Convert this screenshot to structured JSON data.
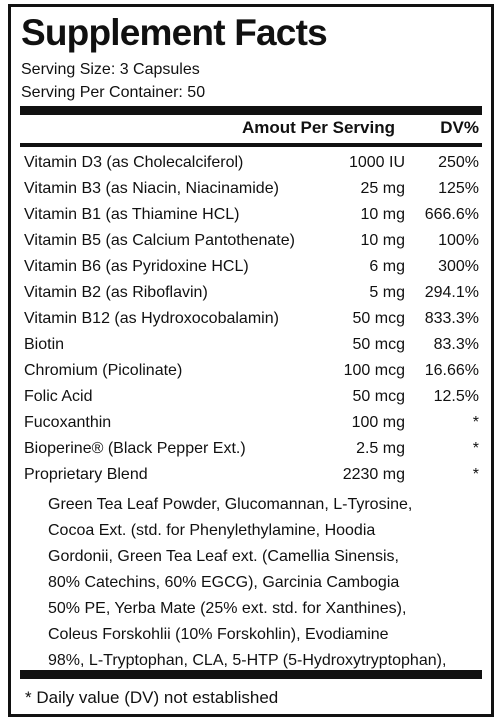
{
  "label": {
    "title": "Supplement Facts",
    "serving_size": "Serving Size: 3 Capsules",
    "servings_per_container": "Serving Per Container: 50",
    "header_amount": "Amout Per Serving",
    "header_dv": "DV%",
    "ingredients": [
      {
        "name": "Vitamin D3 (as Cholecalciferol)",
        "amount": "1000 IU",
        "dv": "250%"
      },
      {
        "name": "Vitamin B3 (as Niacin, Niacinamide)",
        "amount": "25 mg",
        "dv": "125%"
      },
      {
        "name": "Vitamin B1 (as Thiamine HCL)",
        "amount": "10 mg",
        "dv": "666.6%"
      },
      {
        "name": "Vitamin B5 (as Calcium Pantothenate)",
        "amount": "10 mg",
        "dv": "100%"
      },
      {
        "name": "Vitamin B6 (as Pyridoxine HCL)",
        "amount": "6 mg",
        "dv": "300%"
      },
      {
        "name": "Vitamin B2 (as Riboflavin)",
        "amount": "5 mg",
        "dv": "294.1%"
      },
      {
        "name": "Vitamin B12 (as Hydroxocobalamin)",
        "amount": "50 mcg",
        "dv": "833.3%"
      },
      {
        "name": "Biotin",
        "amount": "50 mcg",
        "dv": "83.3%"
      },
      {
        "name": "Chromium (Picolinate)",
        "amount": "100 mcg",
        "dv": "16.66%"
      },
      {
        "name": "Folic Acid",
        "amount": "50 mcg",
        "dv": "12.5%"
      },
      {
        "name": "Fucoxanthin",
        "amount": "100 mg",
        "dv": "*"
      },
      {
        "name": "Bioperine® (Black Pepper Ext.)",
        "amount": "2.5 mg",
        "dv": "*"
      },
      {
        "name": "Proprietary Blend",
        "amount": "2230 mg",
        "dv": "*"
      }
    ],
    "blend_lines": [
      "Green Tea Leaf Powder, Glucomannan, L-Tyrosine,",
      "Cocoa Ext. (std. for Phenylethylamine, Hoodia",
      "Gordonii, Green Tea Leaf ext. (Camellia Sinensis,",
      "80% Catechins, 60% EGCG), Garcinia Cambogia",
      "50% PE, Yerba Mate (25% ext. std. for Xanthines),",
      "Coleus Forskohlii (10% Forskohlin), Evodiamine",
      "98%,  L-Tryptophan, CLA, 5-HTP (5-Hydroxytryptophan),"
    ],
    "footnote": "* Daily value (DV) not established"
  }
}
